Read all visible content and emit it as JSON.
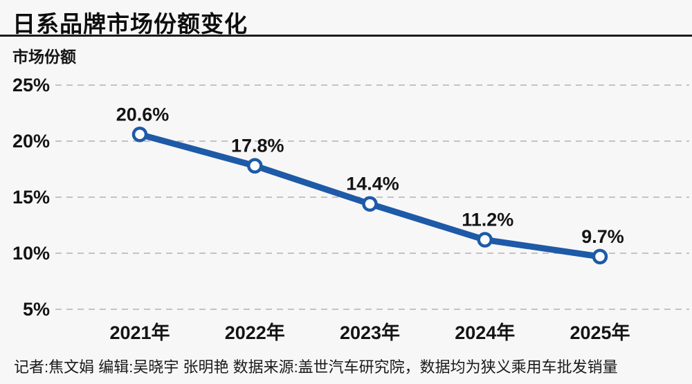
{
  "page": {
    "title": "日系品牌市场份额变化",
    "footer": "记者:焦文娟  编辑:吴晓宇 张明艳  数据来源:盖世汽车研究院，数据均为狭义乘用车批发销量"
  },
  "chart_data": {
    "type": "line",
    "title": "日系品牌市场份额变化",
    "ylabel": "市场份额",
    "xlabel": "",
    "categories": [
      "2021年",
      "2022年",
      "2023年",
      "2024年",
      "2025年"
    ],
    "values": [
      20.6,
      17.8,
      14.4,
      11.2,
      9.7
    ],
    "point_labels": [
      "20.6%",
      "17.8%",
      "14.4%",
      "11.2%",
      "9.7%"
    ],
    "yticks": [
      25,
      20,
      15,
      10,
      5
    ],
    "ytick_labels": [
      "25%",
      "20%",
      "15%",
      "10%",
      "5%"
    ],
    "ylim": [
      5,
      25
    ],
    "grid": "horizontal-dashed",
    "legend": "none",
    "colors": {
      "line": "#1e5aa7",
      "marker_fill": "#fcfcfc",
      "marker_stroke": "#1e5aa7",
      "grid": "#c3c3c3",
      "text": "#141414",
      "background": "#f7f7f7"
    }
  }
}
